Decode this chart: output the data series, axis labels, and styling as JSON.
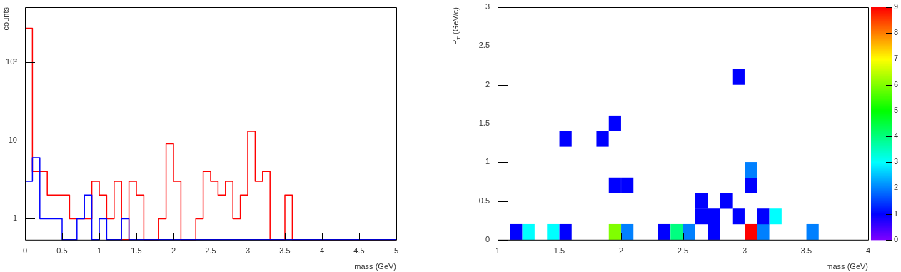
{
  "chart_data": [
    {
      "type": "histogram",
      "xlabel": "mass (GeV)",
      "ylabel": "counts",
      "log": "y",
      "bins": [
        0,
        0.1,
        0.2,
        0.3,
        0.4,
        0.5,
        0.6,
        0.7,
        0.8,
        0.9,
        1,
        1.1,
        1.2,
        1.3,
        1.4,
        1.5,
        1.6,
        1.7,
        1.8,
        1.9,
        2,
        2.1,
        2.2,
        2.3,
        2.4,
        2.5,
        2.6,
        2.7,
        2.8,
        2.9,
        3,
        3.1,
        3.2,
        3.3,
        3.4,
        3.5,
        3.6,
        3.7,
        3.8,
        3.9,
        4,
        4.1,
        4.2,
        4.3,
        4.4,
        4.5,
        4.6,
        4.7,
        4.8,
        4.9,
        5
      ],
      "series": [
        {
          "color": "#ff0000",
          "values": [
            270,
            4,
            4,
            2,
            2,
            2,
            1,
            1,
            1,
            3,
            2,
            1,
            3,
            null,
            3,
            2,
            null,
            null,
            1,
            9,
            3,
            null,
            null,
            1,
            4,
            3,
            2,
            3,
            1,
            2,
            13,
            3,
            4,
            null,
            null,
            2,
            null,
            null,
            null,
            null,
            null,
            null,
            null,
            null,
            null,
            null,
            null,
            null,
            null,
            null
          ]
        },
        {
          "color": "#0000ff",
          "values": [
            3,
            6,
            1,
            1,
            1,
            null,
            null,
            1,
            2,
            null,
            1,
            null,
            null,
            1,
            null,
            null,
            null,
            null,
            null,
            null,
            null,
            null,
            null,
            null,
            null,
            null,
            null,
            null,
            null,
            null,
            null,
            null,
            null,
            null,
            null,
            null,
            null,
            null,
            null,
            null,
            null,
            null,
            null,
            null,
            null,
            null,
            null,
            null,
            null,
            null
          ]
        }
      ],
      "xlim": [
        0,
        5
      ],
      "xticks": [
        0,
        0.5,
        1,
        1.5,
        2,
        2.5,
        3,
        3.5,
        4,
        4.5,
        5
      ],
      "ylim": [
        0.54,
        500
      ],
      "yticks": [
        1,
        10,
        {
          "value": 100,
          "label": "10²"
        }
      ]
    },
    {
      "type": "scatter",
      "xlabel": "mass (GeV)",
      "ylabel": "P$_{T}$ (GeV/c)",
      "marker": "square",
      "x": [
        1.15,
        1.25,
        1.45,
        1.55,
        1.95,
        2.05,
        2.35,
        2.45,
        2.55,
        2.75,
        3.05,
        3.15,
        3.55,
        2.65,
        2.75,
        2.95,
        3.15,
        3.25,
        2.65,
        2.85,
        1.95,
        2.05,
        3.05,
        3.05,
        1.55,
        1.85,
        1.95,
        2.95
      ],
      "values": [
        0.1,
        0.1,
        0.1,
        0.1,
        0.1,
        0.1,
        0.1,
        0.1,
        0.1,
        0.1,
        0.1,
        0.1,
        0.1,
        0.3,
        0.3,
        0.3,
        0.3,
        0.3,
        0.5,
        0.5,
        0.7,
        0.7,
        0.7,
        0.9,
        1.3,
        1.3,
        1.5,
        2.1
      ],
      "cvalues": [
        1,
        3,
        3,
        1,
        6,
        2,
        1,
        4,
        2,
        1,
        9,
        2,
        2,
        1,
        1,
        1,
        1,
        3,
        1,
        1,
        1,
        1,
        1,
        2,
        1,
        1,
        1,
        1
      ],
      "xlim": [
        1,
        4
      ],
      "xticks": [
        1,
        1.5,
        2,
        2.5,
        3,
        3.5,
        4
      ],
      "ylim": [
        0,
        3
      ],
      "yticks": [
        0,
        0.5,
        1,
        1.5,
        2,
        2.5,
        3
      ],
      "clim": [
        0,
        9
      ],
      "cticks": [
        0,
        1,
        2,
        3,
        4,
        5,
        6,
        7,
        8,
        9
      ]
    }
  ]
}
